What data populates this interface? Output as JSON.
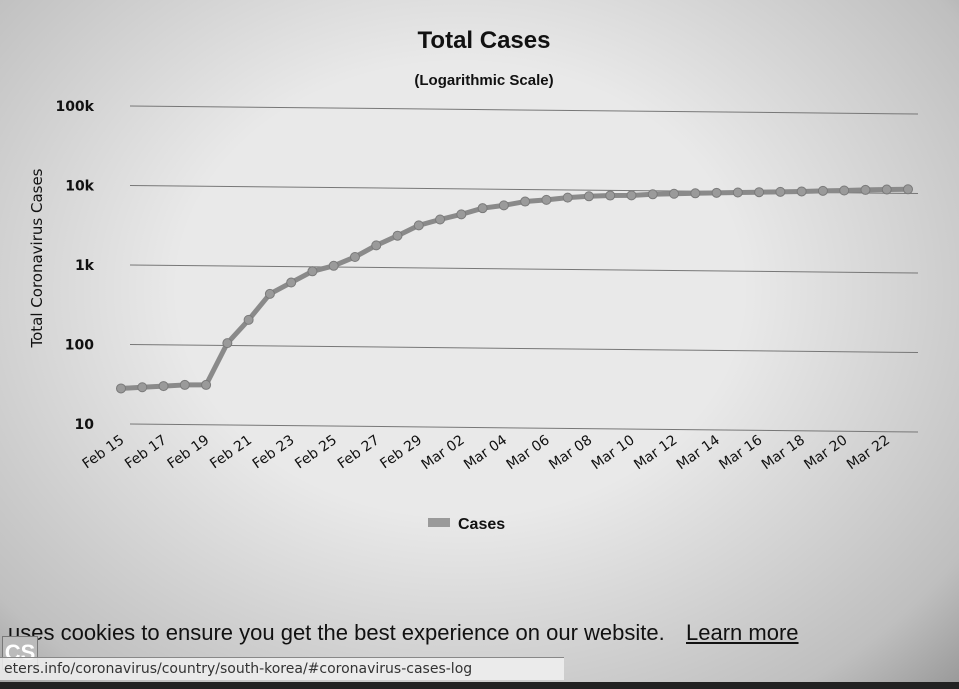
{
  "chart_data": {
    "type": "line",
    "title": "Total Cases",
    "subtitle": "(Logarithmic Scale)",
    "ylabel": "Total Coronavirus Cases",
    "xlabel": "",
    "y_scale": "log",
    "ylim": [
      10,
      100000
    ],
    "y_ticks": [
      {
        "value": 10,
        "label": "10"
      },
      {
        "value": 100,
        "label": "100"
      },
      {
        "value": 1000,
        "label": "1k"
      },
      {
        "value": 10000,
        "label": "10k"
      },
      {
        "value": 100000,
        "label": "100k"
      }
    ],
    "x_tick_labels": [
      "Feb 15",
      "Feb 17",
      "Feb 19",
      "Feb 21",
      "Feb 23",
      "Feb 25",
      "Feb 27",
      "Feb 29",
      "Mar 02",
      "Mar 04",
      "Mar 06",
      "Mar 08",
      "Mar 10",
      "Mar 12",
      "Mar 14",
      "Mar 16",
      "Mar 18",
      "Mar 20",
      "Mar 22"
    ],
    "x": [
      "Feb 15",
      "Feb 16",
      "Feb 17",
      "Feb 18",
      "Feb 19",
      "Feb 20",
      "Feb 21",
      "Feb 22",
      "Feb 23",
      "Feb 24",
      "Feb 25",
      "Feb 26",
      "Feb 27",
      "Feb 28",
      "Feb 29",
      "Mar 01",
      "Mar 02",
      "Mar 03",
      "Mar 04",
      "Mar 05",
      "Mar 06",
      "Mar 07",
      "Mar 08",
      "Mar 09",
      "Mar 10",
      "Mar 11",
      "Mar 12",
      "Mar 13",
      "Mar 14",
      "Mar 15",
      "Mar 16",
      "Mar 17",
      "Mar 18",
      "Mar 19",
      "Mar 20",
      "Mar 21",
      "Mar 22",
      "Mar 23"
    ],
    "series": [
      {
        "name": "Cases",
        "values": [
          28,
          29,
          30,
          31,
          31,
          104,
          204,
          433,
          602,
          833,
          977,
          1261,
          1766,
          2337,
          3150,
          3736,
          4335,
          5186,
          5621,
          6284,
          6593,
          7041,
          7314,
          7478,
          7513,
          7755,
          7869,
          7979,
          8086,
          8162,
          8236,
          8320,
          8413,
          8565,
          8652,
          8799,
          8897,
          8961
        ]
      }
    ],
    "legend": {
      "position": "bottom",
      "entries": [
        "Cases"
      ]
    },
    "grid": true,
    "colors": {
      "line": "#8a8a8a",
      "marker": "#9a9a9a",
      "grid": "#777777"
    }
  },
  "cookie_bar": {
    "text": "uses cookies to ensure you get the best experience on our website.",
    "link": "Learn more"
  },
  "status_url": "eters.info/coronavirus/country/south-korea/#coronavirus-cases-log",
  "badge": "CS"
}
